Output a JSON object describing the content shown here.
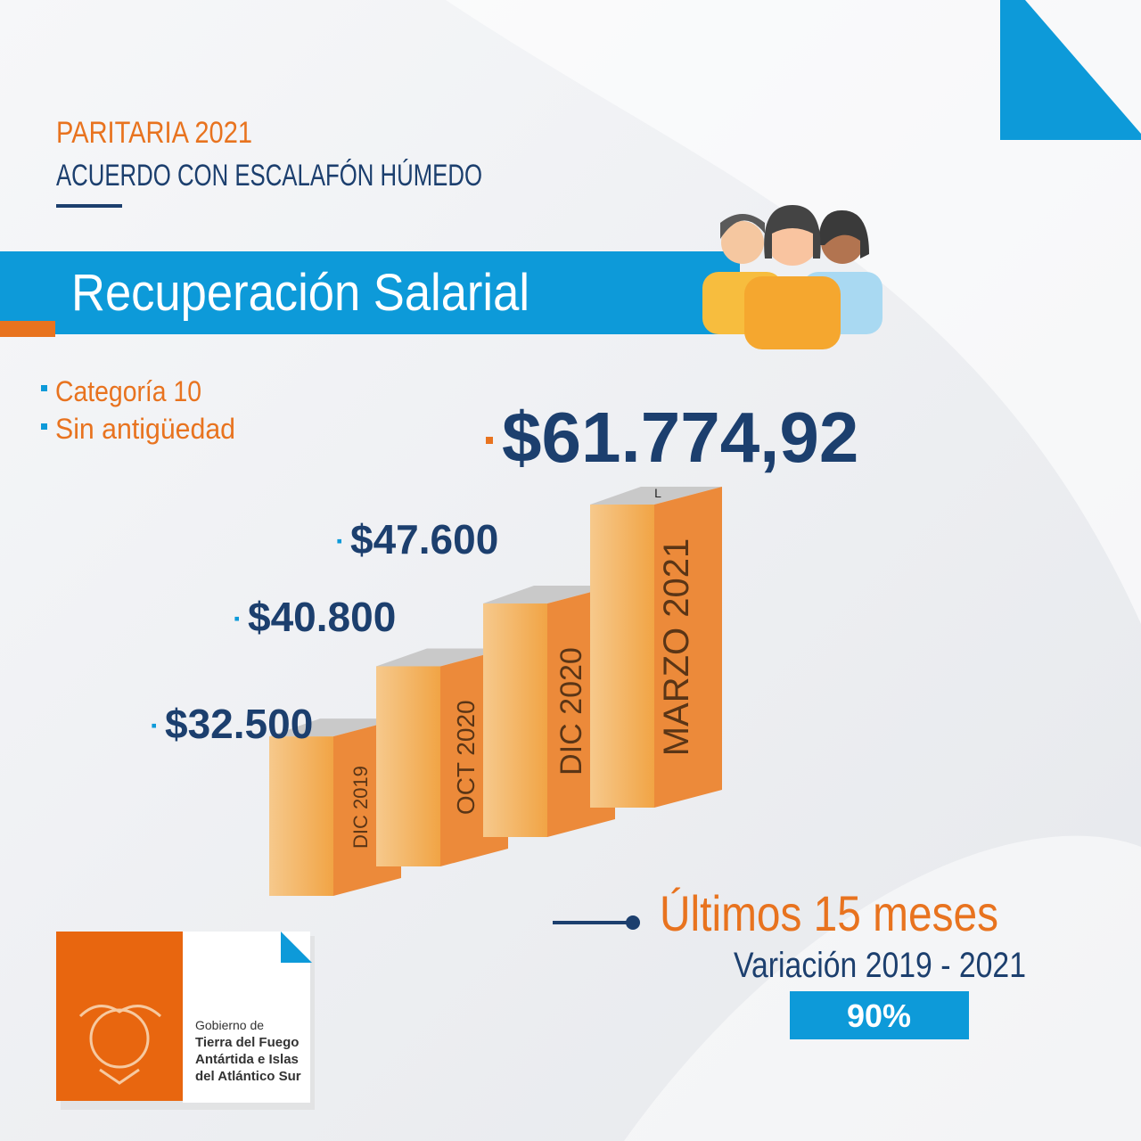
{
  "header": {
    "subtitle": "PARITARIA 2021",
    "title": "ACUERDO CON ESCALAFÓN HÚMEDO"
  },
  "banner": "Recuperación Salarial",
  "bullets": [
    "Categoría 10",
    "Sin antigüedad"
  ],
  "chart_data": {
    "type": "bar",
    "categories": [
      "DIC 2019",
      "OCT 2020",
      "DIC 2020",
      "MARZO 2021"
    ],
    "values": [
      32500,
      40800,
      47600,
      61774.92
    ],
    "value_labels": [
      "$32.500",
      "$40.800",
      "$47.600",
      "$61.774,92"
    ],
    "annotation": "L"
  },
  "summary": {
    "title": "Últimos 15 meses",
    "subtitle": "Variación 2019 - 2021",
    "value": "90%"
  },
  "logo": [
    "Gobierno de",
    "Tierra del Fuego",
    "Antártida e Islas",
    "del Atlántico Sur"
  ]
}
